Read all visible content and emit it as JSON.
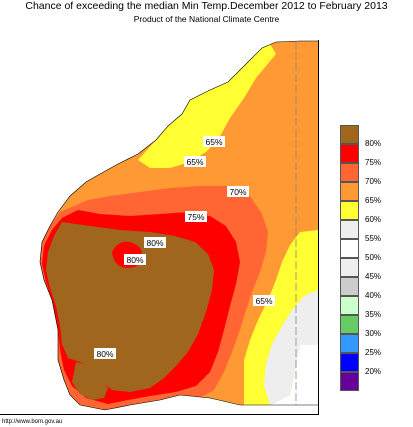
{
  "header": {
    "title": "Chance of exceeding the median Min Temp.December 2012 to February 2013",
    "subtitle": "Product of the National Climate Centre"
  },
  "footer": {
    "url": "http://www.bom.gov.au"
  },
  "legend": [
    {
      "label": "80%",
      "color": "#a0661e"
    },
    {
      "label": "75%",
      "color": "#ff0000"
    },
    {
      "label": "70%",
      "color": "#ff6633"
    },
    {
      "label": "65%",
      "color": "#ff9933"
    },
    {
      "label": "60%",
      "color": "#ffff33"
    },
    {
      "label": "55%",
      "color": "#eeeeee"
    },
    {
      "label": "50%",
      "color": "#ffffff"
    },
    {
      "label": "45%",
      "color": "#eeeeee"
    },
    {
      "label": "40%",
      "color": "#cccccc"
    },
    {
      "label": "35%",
      "color": "#ccffcc"
    },
    {
      "label": "30%",
      "color": "#66cc66"
    },
    {
      "label": "25%",
      "color": "#3399ff"
    },
    {
      "label": "20%",
      "color": "#0000ff"
    },
    {
      "label": "",
      "color": "#660099"
    }
  ],
  "map_labels": [
    {
      "text": "65%"
    },
    {
      "text": "65%"
    },
    {
      "text": "70%"
    },
    {
      "text": "75%"
    },
    {
      "text": "80%"
    },
    {
      "text": "80%"
    },
    {
      "text": "65%"
    },
    {
      "text": "80%"
    }
  ]
}
